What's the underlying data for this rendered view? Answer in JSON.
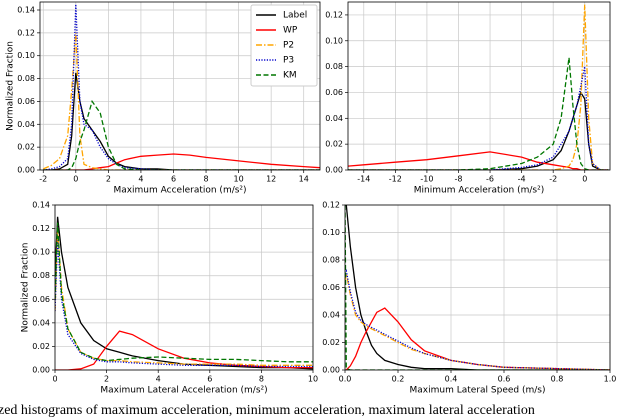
{
  "chart_data": [
    {
      "type": "line",
      "xlabel": "Maximum Acceleration (m/s²)",
      "ylabel": "Normalized Fraction",
      "grid": true,
      "legend": "upper right",
      "x": [
        -2,
        -1.5,
        -1,
        -0.5,
        -0.25,
        0,
        0.25,
        0.5,
        1,
        1.5,
        2,
        2.5,
        3,
        4,
        5,
        6,
        7,
        8,
        10,
        12,
        14,
        15
      ],
      "xlim": [
        -2.2,
        15
      ],
      "xticks": [
        -2,
        0,
        2,
        4,
        6,
        8,
        10,
        12,
        14
      ],
      "ylim": [
        0,
        0.147
      ],
      "yticks": [
        {
          "value": 0,
          "label": "0.00"
        },
        {
          "value": 0.02,
          "label": "0.02"
        },
        {
          "value": 0.04,
          "label": "0.04"
        },
        {
          "value": 0.06,
          "label": "0.06"
        },
        {
          "value": 0.08,
          "label": "0.08"
        },
        {
          "value": 0.1,
          "label": "0.10"
        },
        {
          "value": 0.12,
          "label": "0.12"
        },
        {
          "value": 0.14,
          "label": "0.14"
        }
      ],
      "series": [
        {
          "name": "Label",
          "color": "#000000",
          "dash": "solid",
          "values": [
            0,
            0,
            0.001,
            0.005,
            0.03,
            0.085,
            0.06,
            0.045,
            0.035,
            0.025,
            0.012,
            0.006,
            0.003,
            0.001,
            0.001,
            0,
            0,
            0,
            0,
            0,
            0,
            0
          ]
        },
        {
          "name": "WP",
          "color": "#ff0000",
          "dash": "solid",
          "values": [
            0,
            0,
            0,
            0,
            0,
            0,
            0,
            0,
            0.001,
            0.002,
            0.003,
            0.006,
            0.009,
            0.012,
            0.013,
            0.014,
            0.013,
            0.011,
            0.008,
            0.005,
            0.003,
            0.002
          ]
        },
        {
          "name": "P2",
          "color": "#ffa500",
          "dash": "dashdot",
          "values": [
            0.001,
            0.004,
            0.01,
            0.03,
            0.07,
            0.12,
            0.03,
            0.005,
            0.002,
            0.001,
            0,
            0,
            0,
            0,
            0,
            0,
            0,
            0,
            0,
            0,
            0,
            0
          ]
        },
        {
          "name": "P3",
          "color": "#0000cc",
          "dash": "dotted",
          "values": [
            0,
            0.001,
            0.003,
            0.01,
            0.04,
            0.145,
            0.06,
            0.04,
            0.035,
            0.02,
            0.01,
            0.005,
            0.002,
            0.001,
            0,
            0,
            0,
            0,
            0,
            0,
            0,
            0
          ]
        },
        {
          "name": "KM",
          "color": "#007700",
          "dash": "dashed",
          "values": [
            0,
            0,
            0,
            0,
            0.002,
            0.01,
            0.025,
            0.035,
            0.06,
            0.05,
            0.02,
            0.005,
            0.001,
            0,
            0,
            0,
            0,
            0,
            0,
            0,
            0,
            0
          ]
        }
      ]
    },
    {
      "type": "line",
      "xlabel": "Minimum Acceleration (m/s²)",
      "grid": true,
      "x": [
        -15,
        -14,
        -12,
        -10,
        -8,
        -6,
        -4,
        -3,
        -2,
        -1.5,
        -1,
        -0.75,
        -0.5,
        -0.25,
        0,
        0.25,
        0.5,
        1,
        1.5
      ],
      "xlim": [
        -15,
        1.6
      ],
      "xticks": [
        -14,
        -12,
        -10,
        -8,
        -6,
        -4,
        -2,
        0
      ],
      "ylim": [
        0,
        0.13
      ],
      "yticks": [
        {
          "value": 0,
          "label": "0.00"
        },
        {
          "value": 0.02,
          "label": "0.02"
        },
        {
          "value": 0.04,
          "label": "0.04"
        },
        {
          "value": 0.06,
          "label": "0.06"
        },
        {
          "value": 0.08,
          "label": "0.08"
        },
        {
          "value": 0.1,
          "label": "0.10"
        },
        {
          "value": 0.12,
          "label": "0.12"
        }
      ],
      "series": [
        {
          "name": "Label",
          "color": "#000000",
          "dash": "solid",
          "values": [
            0,
            0,
            0,
            0,
            0,
            0,
            0.001,
            0.003,
            0.008,
            0.015,
            0.03,
            0.04,
            0.05,
            0.06,
            0.055,
            0.02,
            0.003,
            0,
            0
          ]
        },
        {
          "name": "WP",
          "color": "#ff0000",
          "dash": "solid",
          "values": [
            0.003,
            0.004,
            0.006,
            0.008,
            0.011,
            0.014,
            0.01,
            0.006,
            0.004,
            0.003,
            0.002,
            0.001,
            0.001,
            0,
            0,
            0,
            0,
            0,
            0
          ]
        },
        {
          "name": "P2",
          "color": "#ffa500",
          "dash": "dashdot",
          "values": [
            0,
            0,
            0,
            0,
            0,
            0,
            0,
            0,
            0,
            0.001,
            0.003,
            0.008,
            0.02,
            0.05,
            0.128,
            0.04,
            0.005,
            0,
            0
          ]
        },
        {
          "name": "P3",
          "color": "#0000cc",
          "dash": "dotted",
          "values": [
            0,
            0,
            0,
            0,
            0,
            0,
            0.002,
            0.004,
            0.01,
            0.02,
            0.03,
            0.04,
            0.05,
            0.065,
            0.08,
            0.02,
            0.005,
            0,
            0
          ]
        },
        {
          "name": "KM",
          "color": "#007700",
          "dash": "dashed",
          "values": [
            0,
            0,
            0,
            0,
            0,
            0.001,
            0.005,
            0.01,
            0.02,
            0.04,
            0.087,
            0.05,
            0.02,
            0.005,
            0.001,
            0,
            0,
            0,
            0
          ]
        }
      ]
    },
    {
      "type": "line",
      "xlabel": "Maximum Lateral Acceleration (m/s²)",
      "ylabel": "Normalized Fraction",
      "grid": true,
      "x": [
        0,
        0.1,
        0.25,
        0.5,
        1,
        1.5,
        2,
        2.5,
        3,
        4,
        5,
        6,
        7,
        8,
        9,
        10
      ],
      "xlim": [
        0,
        10
      ],
      "xticks": [
        0,
        2,
        4,
        6,
        8,
        10
      ],
      "ylim": [
        0,
        0.14
      ],
      "yticks": [
        {
          "value": 0,
          "label": "0.00"
        },
        {
          "value": 0.02,
          "label": "0.02"
        },
        {
          "value": 0.04,
          "label": "0.04"
        },
        {
          "value": 0.06,
          "label": "0.06"
        },
        {
          "value": 0.08,
          "label": "0.08"
        },
        {
          "value": 0.1,
          "label": "0.10"
        },
        {
          "value": 0.12,
          "label": "0.12"
        },
        {
          "value": 0.14,
          "label": "0.14"
        }
      ],
      "series": [
        {
          "name": "Label",
          "color": "#000000",
          "dash": "solid",
          "values": [
            0.08,
            0.13,
            0.1,
            0.07,
            0.04,
            0.025,
            0.018,
            0.015,
            0.012,
            0.008,
            0.005,
            0.004,
            0.003,
            0.002,
            0.002,
            0.001
          ]
        },
        {
          "name": "WP",
          "color": "#ff0000",
          "dash": "solid",
          "values": [
            0,
            0,
            0,
            0,
            0.001,
            0.005,
            0.02,
            0.033,
            0.03,
            0.018,
            0.01,
            0.006,
            0.004,
            0.003,
            0.002,
            0.002
          ]
        },
        {
          "name": "P2",
          "color": "#ffa500",
          "dash": "dashdot",
          "values": [
            0.05,
            0.12,
            0.07,
            0.035,
            0.015,
            0.01,
            0.008,
            0.008,
            0.007,
            0.006,
            0.005,
            0.005,
            0.005,
            0.004,
            0.004,
            0.004
          ]
        },
        {
          "name": "P3",
          "color": "#0000cc",
          "dash": "dotted",
          "values": [
            0.05,
            0.11,
            0.06,
            0.03,
            0.014,
            0.009,
            0.007,
            0.007,
            0.006,
            0.005,
            0.004,
            0.004,
            0.004,
            0.003,
            0.003,
            0.003
          ]
        },
        {
          "name": "KM",
          "color": "#007700",
          "dash": "dashed",
          "values": [
            0.06,
            0.125,
            0.065,
            0.035,
            0.015,
            0.01,
            0.008,
            0.009,
            0.01,
            0.011,
            0.01,
            0.009,
            0.009,
            0.008,
            0.007,
            0.007
          ]
        }
      ]
    },
    {
      "type": "line",
      "xlabel": "Maximum Lateral Speed (m/s)",
      "grid": true,
      "x": [
        0,
        0.005,
        0.02,
        0.04,
        0.06,
        0.08,
        0.1,
        0.12,
        0.15,
        0.2,
        0.25,
        0.3,
        0.4,
        0.5,
        0.6,
        0.8,
        1.0
      ],
      "xlim": [
        0,
        1.0
      ],
      "xticks": [
        {
          "value": 0,
          "label": "0.0"
        },
        0.2,
        0.4,
        0.6,
        0.8,
        {
          "value": 1,
          "label": "1.0"
        }
      ],
      "ylim": [
        0,
        0.12
      ],
      "yticks": [
        {
          "value": 0,
          "label": "0.00"
        },
        {
          "value": 0.02,
          "label": "0.02"
        },
        {
          "value": 0.04,
          "label": "0.04"
        },
        {
          "value": 0.06,
          "label": "0.06"
        },
        {
          "value": 0.08,
          "label": "0.08"
        },
        {
          "value": 0.1,
          "label": "0.10"
        },
        {
          "value": 0.12,
          "label": "0.12"
        }
      ],
      "series": [
        {
          "name": "Label",
          "color": "#000000",
          "dash": "solid",
          "values": [
            0.12,
            0.12,
            0.09,
            0.06,
            0.04,
            0.028,
            0.018,
            0.012,
            0.007,
            0.004,
            0.002,
            0.001,
            0.001,
            0,
            0,
            0,
            0
          ]
        },
        {
          "name": "WP",
          "color": "#ff0000",
          "dash": "solid",
          "values": [
            0,
            0,
            0.003,
            0.01,
            0.02,
            0.028,
            0.035,
            0.042,
            0.045,
            0.035,
            0.022,
            0.014,
            0.007,
            0.004,
            0.002,
            0.001,
            0
          ]
        },
        {
          "name": "P2",
          "color": "#ffa500",
          "dash": "dashdot",
          "values": [
            0.065,
            0.07,
            0.055,
            0.04,
            0.035,
            0.032,
            0.03,
            0.028,
            0.025,
            0.02,
            0.015,
            0.012,
            0.007,
            0.004,
            0.002,
            0.001,
            0
          ]
        },
        {
          "name": "P3",
          "color": "#0000cc",
          "dash": "dotted",
          "values": [
            0.07,
            0.072,
            0.057,
            0.042,
            0.036,
            0.033,
            0.031,
            0.029,
            0.026,
            0.021,
            0.016,
            0.012,
            0.007,
            0.004,
            0.002,
            0.001,
            0
          ]
        },
        {
          "name": "KM",
          "color": "#007700",
          "dash": "dashed",
          "values": [
            0.12,
            0.001,
            0,
            0,
            0,
            0,
            0,
            0,
            0,
            0,
            0,
            0,
            0,
            0,
            0,
            0,
            0
          ]
        }
      ]
    }
  ],
  "caption": "zed histograms of maximum acceleration, minimum acceleration, maximum lateral acceleration"
}
